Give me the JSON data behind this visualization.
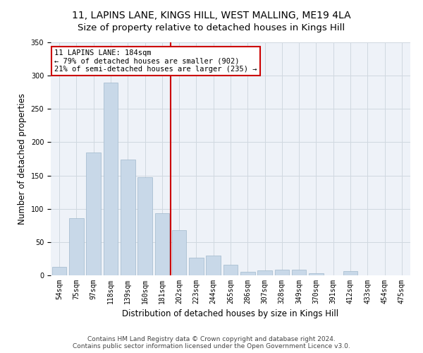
{
  "title": "11, LAPINS LANE, KINGS HILL, WEST MALLING, ME19 4LA",
  "subtitle": "Size of property relative to detached houses in Kings Hill",
  "xlabel": "Distribution of detached houses by size in Kings Hill",
  "ylabel": "Number of detached properties",
  "categories": [
    "54sqm",
    "75sqm",
    "97sqm",
    "118sqm",
    "139sqm",
    "160sqm",
    "181sqm",
    "202sqm",
    "223sqm",
    "244sqm",
    "265sqm",
    "286sqm",
    "307sqm",
    "328sqm",
    "349sqm",
    "370sqm",
    "391sqm",
    "412sqm",
    "433sqm",
    "454sqm",
    "475sqm"
  ],
  "bar_heights": [
    13,
    86,
    185,
    290,
    174,
    147,
    93,
    68,
    27,
    30,
    16,
    5,
    7,
    8,
    8,
    3,
    0,
    6,
    0,
    0,
    0
  ],
  "bar_color": "#c8d8e8",
  "bar_edgecolor": "#a0b8cc",
  "property_label": "11 LAPINS LANE: 184sqm",
  "annotation_line1": "← 79% of detached houses are smaller (902)",
  "annotation_line2": "21% of semi-detached houses are larger (235) →",
  "vline_color": "#cc0000",
  "vline_bar_index": 6.5,
  "annotation_box_color": "#ffffff",
  "annotation_box_edgecolor": "#cc0000",
  "ylim": [
    0,
    350
  ],
  "yticks": [
    0,
    50,
    100,
    150,
    200,
    250,
    300,
    350
  ],
  "grid_color": "#d0d8e0",
  "background_color": "#eef2f8",
  "footer_line1": "Contains HM Land Registry data © Crown copyright and database right 2024.",
  "footer_line2": "Contains public sector information licensed under the Open Government Licence v3.0.",
  "title_fontsize": 10,
  "xlabel_fontsize": 8.5,
  "ylabel_fontsize": 8.5,
  "tick_fontsize": 7,
  "annotation_fontsize": 7.5,
  "footer_fontsize": 6.5
}
